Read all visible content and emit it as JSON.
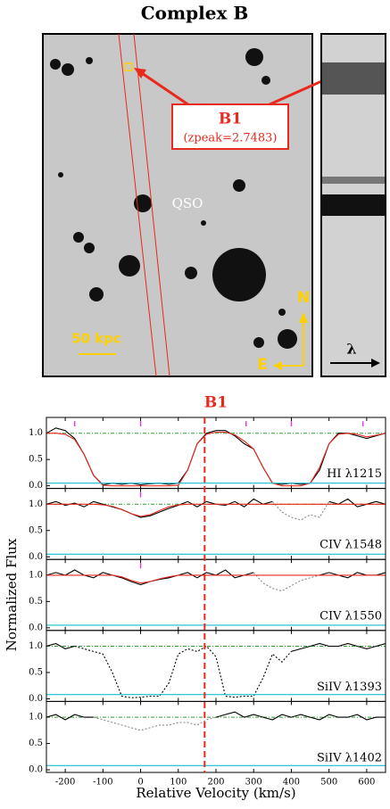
{
  "figure": {
    "title": "Complex B",
    "image_label": "B1",
    "image_sublabel": "(zpeak=2.7483)",
    "qso": "QSO",
    "scale": "50 kpc",
    "north": "N",
    "east": "E",
    "lambda": "λ",
    "spectra_title": "B1",
    "xlabel": "Relative Velocity (km/s)",
    "ylabel": "Normalized Flux",
    "marker_velocity": 170
  },
  "chart_data": [
    {
      "type": "line",
      "label": "HI λ1215",
      "xlim": [
        -250,
        650
      ],
      "ylim": [
        -0.05,
        1.3
      ],
      "xticks": [
        {
          "value": -200,
          "label": "-200"
        },
        {
          "value": -100,
          "label": "-100"
        },
        0,
        100,
        200,
        300,
        400,
        500,
        600
      ],
      "yticks": [
        {
          "value": 0,
          "label": "0.0"
        },
        {
          "value": 0.5,
          "label": "0.5"
        },
        {
          "value": 1,
          "label": "1.0"
        }
      ],
      "continuum": 1,
      "components": [
        -175,
        0,
        280,
        400,
        590
      ],
      "x": [
        -250,
        -225,
        -200,
        -175,
        -150,
        -125,
        -100,
        -75,
        -50,
        -25,
        0,
        25,
        50,
        75,
        100,
        125,
        150,
        175,
        200,
        225,
        250,
        275,
        300,
        325,
        350,
        375,
        400,
        425,
        450,
        475,
        500,
        525,
        550,
        575,
        600,
        625,
        650
      ],
      "series": [
        {
          "color": "#000000",
          "style": "solid",
          "values": [
            1.0,
            1.1,
            1.05,
            0.9,
            0.6,
            0.2,
            0.02,
            0.05,
            0.03,
            0.05,
            0.02,
            0.04,
            0.05,
            0.03,
            0.05,
            0.3,
            0.8,
            1.0,
            1.05,
            1.05,
            0.95,
            0.8,
            0.7,
            0.35,
            0.05,
            0.03,
            0.05,
            0.03,
            0.05,
            0.3,
            0.8,
            1.0,
            1.0,
            0.95,
            0.9,
            0.95,
            1.0
          ]
        },
        {
          "color": "#e8291c",
          "style": "solid",
          "values": [
            1.0,
            1.0,
            0.98,
            0.88,
            0.6,
            0.2,
            0.01,
            0,
            0,
            0,
            0,
            0,
            0,
            0,
            0.01,
            0.3,
            0.8,
            0.98,
            1.02,
            1.02,
            0.97,
            0.85,
            0.7,
            0.35,
            0.05,
            0,
            0,
            0,
            0.05,
            0.35,
            0.8,
            0.98,
            1.0,
            0.98,
            0.93,
            0.96,
            1.0
          ]
        },
        {
          "color": "#17becf",
          "style": "solid",
          "values": [
            0.05,
            0.05,
            0.05,
            0.05,
            0.05,
            0.05,
            0.05,
            0.05,
            0.05,
            0.05,
            0.05,
            0.05,
            0.05,
            0.05,
            0.05,
            0.05,
            0.05,
            0.05,
            0.05,
            0.05,
            0.05,
            0.05,
            0.05,
            0.05,
            0.05,
            0.05,
            0.05,
            0.05,
            0.05,
            0.05,
            0.05,
            0.05,
            0.05,
            0.05,
            0.05,
            0.05,
            0.05
          ]
        }
      ]
    },
    {
      "type": "line",
      "label": "CIV λ1548",
      "xlim": [
        -250,
        650
      ],
      "ylim": [
        -0.05,
        1.3
      ],
      "xticks": [
        {
          "value": -200,
          "label": "-200"
        },
        {
          "value": -100,
          "label": "-100"
        },
        0,
        100,
        200,
        300,
        400,
        500,
        600
      ],
      "yticks": [
        {
          "value": 0,
          "label": "0.0"
        },
        {
          "value": 0.5,
          "label": "0.5"
        },
        {
          "value": 1,
          "label": "1.0"
        }
      ],
      "continuum": 1,
      "components": [
        0
      ],
      "x": [
        -250,
        -225,
        -200,
        -175,
        -150,
        -125,
        -100,
        -75,
        -50,
        -25,
        0,
        25,
        50,
        75,
        100,
        125,
        150,
        175,
        200,
        225,
        250,
        275,
        300,
        325,
        350,
        375,
        400,
        425,
        450,
        475,
        500,
        525,
        550,
        575,
        600,
        625,
        650
      ],
      "series": [
        {
          "color": "#000000",
          "style": "solid",
          "values": [
            1.0,
            1.05,
            0.98,
            1.02,
            0.95,
            1.05,
            1.0,
            0.95,
            0.9,
            0.82,
            0.75,
            0.78,
            0.85,
            0.92,
            0.98,
            1.05,
            0.95,
            1.05,
            1.0,
            0.98,
            1.05,
            0.95,
            1.1,
            1.0,
            1.05,
            null,
            null,
            null,
            null,
            null,
            1.05,
            1.0,
            1.1,
            0.95,
            1.0,
            1.05,
            1.0
          ]
        },
        {
          "color": "#888888",
          "style": "dotted",
          "values": [
            null,
            null,
            null,
            null,
            null,
            null,
            null,
            null,
            null,
            null,
            null,
            null,
            null,
            null,
            null,
            null,
            null,
            null,
            null,
            null,
            null,
            null,
            null,
            null,
            1.05,
            0.85,
            0.75,
            0.7,
            0.8,
            0.75,
            1.05,
            null,
            null,
            null,
            null,
            null,
            null
          ]
        },
        {
          "color": "#e8291c",
          "style": "solid",
          "values": [
            1,
            1,
            1,
            1,
            1,
            1,
            0.99,
            0.96,
            0.9,
            0.82,
            0.77,
            0.8,
            0.88,
            0.95,
            0.99,
            1,
            1,
            1,
            1,
            1,
            1,
            1,
            1,
            1,
            1,
            1,
            1,
            1,
            1,
            1,
            1,
            1,
            1,
            1,
            1,
            1,
            1
          ]
        },
        {
          "color": "#17becf",
          "style": "solid",
          "values": [
            0.05,
            0.05,
            0.05,
            0.05,
            0.05,
            0.05,
            0.05,
            0.05,
            0.05,
            0.05,
            0.05,
            0.05,
            0.05,
            0.05,
            0.05,
            0.05,
            0.05,
            0.05,
            0.05,
            0.05,
            0.05,
            0.05,
            0.05,
            0.05,
            0.05,
            0.05,
            0.05,
            0.05,
            0.05,
            0.05,
            0.05,
            0.05,
            0.05,
            0.05,
            0.05,
            0.05,
            0.05
          ]
        }
      ]
    },
    {
      "type": "line",
      "label": "CIV λ1550",
      "xlim": [
        -250,
        650
      ],
      "ylim": [
        -0.05,
        1.3
      ],
      "xticks": [
        {
          "value": -200,
          "label": "-200"
        },
        {
          "value": -100,
          "label": "-100"
        },
        0,
        100,
        200,
        300,
        400,
        500,
        600
      ],
      "yticks": [
        {
          "value": 0,
          "label": "0.0"
        },
        {
          "value": 0.5,
          "label": "0.5"
        },
        {
          "value": 1,
          "label": "1.0"
        }
      ],
      "components": [
        0
      ],
      "x": [
        -250,
        -225,
        -200,
        -175,
        -150,
        -125,
        -100,
        -75,
        -50,
        -25,
        0,
        25,
        50,
        75,
        100,
        125,
        150,
        175,
        200,
        225,
        250,
        275,
        300,
        325,
        350,
        375,
        400,
        425,
        450,
        475,
        500,
        525,
        550,
        575,
        600,
        625,
        650
      ],
      "series": [
        {
          "color": "#000000",
          "style": "solid",
          "values": [
            1.0,
            1.05,
            1.0,
            1.1,
            1.0,
            0.95,
            1.05,
            1.0,
            0.95,
            0.88,
            0.82,
            0.88,
            0.92,
            0.95,
            1.0,
            1.05,
            0.95,
            1.05,
            1.0,
            1.1,
            0.95,
            1.0,
            1.05,
            null,
            null,
            null,
            null,
            null,
            null,
            1.0,
            1.05,
            1.0,
            0.95,
            1.05,
            1.0,
            1.0,
            1.05
          ]
        },
        {
          "color": "#888888",
          "style": "dotted",
          "values": [
            null,
            null,
            null,
            null,
            null,
            null,
            null,
            null,
            null,
            null,
            null,
            null,
            null,
            null,
            null,
            null,
            null,
            null,
            null,
            null,
            null,
            null,
            1.05,
            0.85,
            0.75,
            0.7,
            0.8,
            0.9,
            0.95,
            1.0,
            null,
            null,
            null,
            null,
            null,
            null,
            null
          ]
        },
        {
          "color": "#e8291c",
          "style": "solid",
          "values": [
            1,
            1,
            1,
            1,
            1,
            1,
            1,
            1,
            0.97,
            0.9,
            0.85,
            0.88,
            0.93,
            0.97,
            1,
            1,
            1,
            1,
            1,
            1,
            1,
            1,
            1,
            1,
            1,
            1,
            1,
            1,
            1,
            1,
            1,
            1,
            1,
            1,
            1,
            1,
            1
          ]
        },
        {
          "color": "#17becf",
          "style": "solid",
          "values": [
            0.05,
            0.05,
            0.05,
            0.05,
            0.05,
            0.05,
            0.05,
            0.05,
            0.05,
            0.05,
            0.05,
            0.05,
            0.05,
            0.05,
            0.05,
            0.05,
            0.05,
            0.05,
            0.05,
            0.05,
            0.05,
            0.05,
            0.05,
            0.05,
            0.05,
            0.05,
            0.05,
            0.05,
            0.05,
            0.05,
            0.05,
            0.05,
            0.05,
            0.05,
            0.05,
            0.05,
            0.05
          ]
        }
      ]
    },
    {
      "type": "line",
      "label": "SiIV λ1393",
      "xlim": [
        -250,
        650
      ],
      "ylim": [
        -0.05,
        1.3
      ],
      "xticks": [
        {
          "value": -200,
          "label": "-200"
        },
        {
          "value": -100,
          "label": "-100"
        },
        0,
        100,
        200,
        300,
        400,
        500,
        600
      ],
      "yticks": [
        {
          "value": 0,
          "label": "0.0"
        },
        {
          "value": 0.5,
          "label": "0.5"
        },
        {
          "value": 1,
          "label": "1.0"
        }
      ],
      "continuum": 1,
      "components": [],
      "x": [
        -250,
        -225,
        -200,
        -175,
        -150,
        -125,
        -100,
        -75,
        -50,
        -25,
        0,
        25,
        50,
        75,
        100,
        125,
        150,
        175,
        200,
        225,
        250,
        275,
        300,
        325,
        350,
        375,
        400,
        425,
        450,
        475,
        500,
        525,
        550,
        575,
        600,
        625,
        650
      ],
      "series": [
        {
          "color": "#000000",
          "style": "solid",
          "values": [
            1.0,
            1.05,
            0.95,
            1.0,
            null,
            null,
            null,
            null,
            null,
            null,
            null,
            null,
            null,
            null,
            null,
            null,
            null,
            null,
            null,
            null,
            null,
            null,
            null,
            null,
            null,
            null,
            0.9,
            0.95,
            1.0,
            1.05,
            1.0,
            1.0,
            1.05,
            1.0,
            0.95,
            1.0,
            1.05
          ]
        },
        {
          "color": "#000000",
          "style": "dotted",
          "values": [
            null,
            null,
            null,
            1.0,
            0.95,
            0.9,
            0.85,
            0.5,
            0.05,
            0.02,
            0.03,
            0.05,
            0.05,
            0.3,
            0.85,
            0.95,
            0.9,
            1.0,
            0.8,
            0.05,
            0.03,
            0.05,
            0.05,
            0.4,
            0.85,
            0.7,
            0.9,
            null,
            null,
            null,
            null,
            null,
            null,
            null,
            null,
            null,
            null
          ]
        },
        {
          "color": "#17becf",
          "style": "solid",
          "values": [
            0.08,
            0.08,
            0.08,
            0.08,
            0.08,
            0.08,
            0.08,
            0.08,
            0.08,
            0.08,
            0.08,
            0.08,
            0.08,
            0.08,
            0.08,
            0.08,
            0.08,
            0.08,
            0.08,
            0.08,
            0.08,
            0.08,
            0.08,
            0.08,
            0.08,
            0.08,
            0.08,
            0.08,
            0.08,
            0.08,
            0.08,
            0.08,
            0.08,
            0.08,
            0.08,
            0.08,
            0.08
          ]
        }
      ]
    },
    {
      "type": "line",
      "label": "SiIV λ1402",
      "xlim": [
        -250,
        650
      ],
      "ylim": [
        -0.05,
        1.3
      ],
      "xticks": [
        {
          "value": -200,
          "label": "-200"
        },
        {
          "value": -100,
          "label": "-100"
        },
        0,
        100,
        200,
        300,
        400,
        500,
        600
      ],
      "yticks": [
        {
          "value": 0,
          "label": "0.0"
        },
        {
          "value": 0.5,
          "label": "0.5"
        },
        {
          "value": 1,
          "label": "1.0"
        }
      ],
      "continuum": 1,
      "components": [],
      "show_xtick_labels": true,
      "x": [
        -250,
        -225,
        -200,
        -175,
        -150,
        -125,
        -100,
        -75,
        -50,
        -25,
        0,
        25,
        50,
        75,
        100,
        125,
        150,
        175,
        200,
        225,
        250,
        275,
        300,
        325,
        350,
        375,
        400,
        425,
        450,
        475,
        500,
        525,
        550,
        575,
        600,
        625,
        650
      ],
      "series": [
        {
          "color": "#000000",
          "style": "solid",
          "values": [
            1.0,
            1.05,
            0.95,
            1.05,
            1.0,
            1.0,
            null,
            null,
            null,
            null,
            null,
            null,
            null,
            null,
            null,
            null,
            null,
            null,
            1.0,
            1.05,
            1.1,
            1.0,
            1.05,
            1.0,
            0.95,
            1.05,
            1.0,
            1.05,
            1.0,
            0.95,
            1.05,
            1.0,
            1.0,
            1.05,
            0.95,
            1.0,
            1.0
          ]
        },
        {
          "color": "#888888",
          "style": "dotted",
          "values": [
            null,
            null,
            null,
            null,
            null,
            1.0,
            0.95,
            0.9,
            0.85,
            0.8,
            0.75,
            0.8,
            0.85,
            0.85,
            0.9,
            0.9,
            0.85,
            0.95,
            1.0,
            null,
            null,
            null,
            null,
            null,
            null,
            null,
            null,
            null,
            null,
            null,
            null,
            null,
            null,
            null,
            null,
            null,
            null
          ]
        },
        {
          "color": "#17becf",
          "style": "solid",
          "values": [
            0.08,
            0.08,
            0.08,
            0.08,
            0.08,
            0.08,
            0.08,
            0.08,
            0.08,
            0.08,
            0.08,
            0.08,
            0.08,
            0.08,
            0.08,
            0.08,
            0.08,
            0.08,
            0.08,
            0.08,
            0.08,
            0.08,
            0.08,
            0.08,
            0.08,
            0.08,
            0.08,
            0.08,
            0.08,
            0.08,
            0.08,
            0.08,
            0.08,
            0.08,
            0.08,
            0.08,
            0.08
          ]
        }
      ]
    }
  ]
}
